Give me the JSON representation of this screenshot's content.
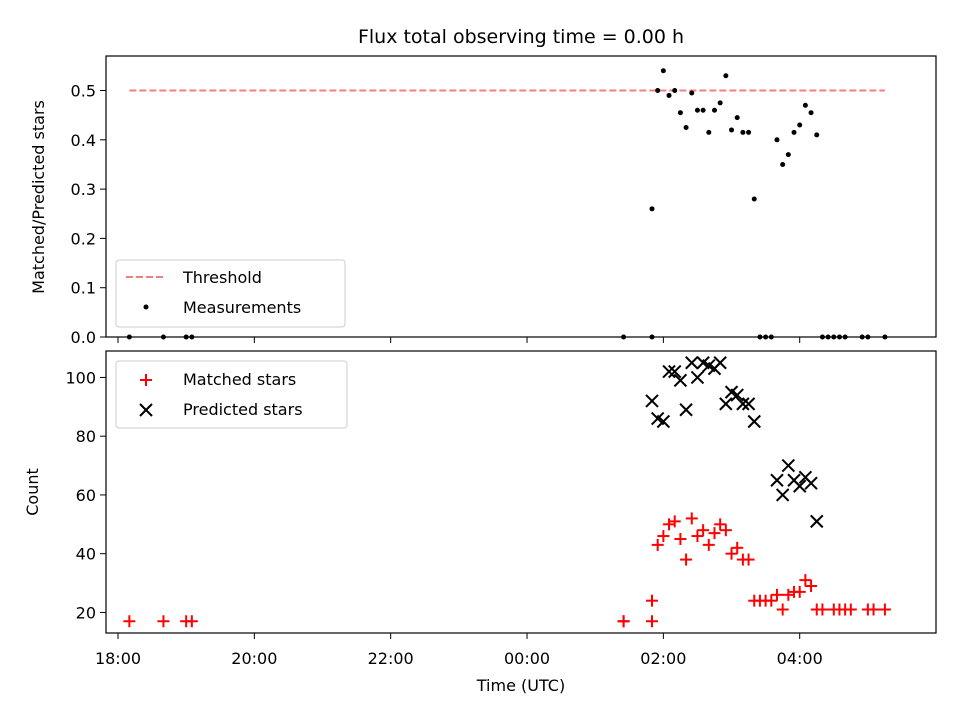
{
  "title": "Flux total observing time = 0.00 h",
  "colors": {
    "threshold": "#f08080",
    "measurements": "#000000",
    "matched": "#ff0000",
    "predicted": "#000000"
  },
  "chart_data": [
    {
      "type": "scatter",
      "panel": "top",
      "ylabel": "Matched/Predicted stars",
      "ylim": [
        0,
        0.57
      ],
      "yticks": [
        0.0,
        0.1,
        0.2,
        0.3,
        0.4,
        0.5
      ],
      "ytick_labels": [
        "0.0",
        "0.1",
        "0.2",
        "0.3",
        "0.4",
        "0.5"
      ],
      "legend_position": "lower-left",
      "legend": [
        "Threshold",
        "Measurements"
      ],
      "series": [
        {
          "name": "Threshold",
          "style": "dashed-line",
          "points": [
            [
              "18:10",
              0.5
            ],
            [
              "05:15",
              0.5
            ]
          ]
        },
        {
          "name": "Measurements",
          "style": "dot",
          "points": [
            [
              "18:10",
              0.0
            ],
            [
              "18:40",
              0.0
            ],
            [
              "19:00",
              0.0
            ],
            [
              "19:05",
              0.0
            ],
            [
              "01:25",
              0.0
            ],
            [
              "01:50",
              0.0
            ],
            [
              "01:50",
              0.26
            ],
            [
              "01:55",
              0.5
            ],
            [
              "02:00",
              0.54
            ],
            [
              "02:05",
              0.49
            ],
            [
              "02:10",
              0.5
            ],
            [
              "02:15",
              0.455
            ],
            [
              "02:20",
              0.425
            ],
            [
              "02:25",
              0.495
            ],
            [
              "02:30",
              0.46
            ],
            [
              "02:35",
              0.46
            ],
            [
              "02:40",
              0.415
            ],
            [
              "02:45",
              0.46
            ],
            [
              "02:50",
              0.475
            ],
            [
              "02:55",
              0.53
            ],
            [
              "03:00",
              0.42
            ],
            [
              "03:05",
              0.445
            ],
            [
              "03:10",
              0.415
            ],
            [
              "03:15",
              0.415
            ],
            [
              "03:20",
              0.28
            ],
            [
              "03:25",
              0.0
            ],
            [
              "03:30",
              0.0
            ],
            [
              "03:35",
              0.0
            ],
            [
              "03:40",
              0.4
            ],
            [
              "03:45",
              0.35
            ],
            [
              "03:50",
              0.37
            ],
            [
              "03:55",
              0.415
            ],
            [
              "04:00",
              0.43
            ],
            [
              "04:05",
              0.47
            ],
            [
              "04:10",
              0.455
            ],
            [
              "04:15",
              0.41
            ],
            [
              "04:20",
              0.0
            ],
            [
              "04:25",
              0.0
            ],
            [
              "04:30",
              0.0
            ],
            [
              "04:35",
              0.0
            ],
            [
              "04:40",
              0.0
            ],
            [
              "04:55",
              0.0
            ],
            [
              "05:00",
              0.0
            ],
            [
              "05:15",
              0.0
            ]
          ]
        }
      ]
    },
    {
      "type": "scatter",
      "panel": "bottom",
      "xlabel": "Time (UTC)",
      "ylabel": "Count",
      "ylim": [
        13,
        109
      ],
      "yticks": [
        20,
        40,
        60,
        80,
        100
      ],
      "ytick_labels": [
        "20",
        "40",
        "60",
        "80",
        "100"
      ],
      "xticks": [
        "18:00",
        "20:00",
        "22:00",
        "00:00",
        "02:00",
        "04:00"
      ],
      "legend_position": "upper-left",
      "legend": [
        "Matched stars",
        "Predicted stars"
      ],
      "series": [
        {
          "name": "Matched stars",
          "style": "plus",
          "points": [
            [
              "18:10",
              17
            ],
            [
              "18:40",
              17
            ],
            [
              "19:00",
              17
            ],
            [
              "19:05",
              17
            ],
            [
              "01:25",
              17
            ],
            [
              "01:25",
              17
            ],
            [
              "01:50",
              17
            ],
            [
              "01:50",
              24
            ],
            [
              "01:55",
              43
            ],
            [
              "02:00",
              46
            ],
            [
              "02:05",
              50
            ],
            [
              "02:10",
              51
            ],
            [
              "02:15",
              45
            ],
            [
              "02:20",
              38
            ],
            [
              "02:25",
              52
            ],
            [
              "02:30",
              46
            ],
            [
              "02:35",
              48
            ],
            [
              "02:40",
              43
            ],
            [
              "02:45",
              47
            ],
            [
              "02:50",
              50
            ],
            [
              "02:55",
              48
            ],
            [
              "03:00",
              40
            ],
            [
              "03:05",
              42
            ],
            [
              "03:10",
              38
            ],
            [
              "03:15",
              38
            ],
            [
              "03:20",
              24
            ],
            [
              "03:25",
              24
            ],
            [
              "03:30",
              24
            ],
            [
              "03:35",
              24
            ],
            [
              "03:40",
              26
            ],
            [
              "03:45",
              21
            ],
            [
              "03:50",
              26
            ],
            [
              "03:55",
              27
            ],
            [
              "04:00",
              27
            ],
            [
              "04:05",
              31
            ],
            [
              "04:10",
              29
            ],
            [
              "04:15",
              21
            ],
            [
              "04:20",
              21
            ],
            [
              "04:30",
              21
            ],
            [
              "04:35",
              21
            ],
            [
              "04:40",
              21
            ],
            [
              "04:45",
              21
            ],
            [
              "05:00",
              21
            ],
            [
              "05:05",
              21
            ],
            [
              "05:15",
              21
            ]
          ]
        },
        {
          "name": "Predicted stars",
          "style": "x",
          "points": [
            [
              "01:50",
              92
            ],
            [
              "01:55",
              86
            ],
            [
              "02:00",
              85
            ],
            [
              "02:05",
              102
            ],
            [
              "02:10",
              102
            ],
            [
              "02:15",
              99
            ],
            [
              "02:20",
              89
            ],
            [
              "02:25",
              105
            ],
            [
              "02:30",
              100
            ],
            [
              "02:35",
              105
            ],
            [
              "02:40",
              104
            ],
            [
              "02:45",
              103
            ],
            [
              "02:50",
              105
            ],
            [
              "02:55",
              91
            ],
            [
              "03:00",
              95
            ],
            [
              "03:05",
              94
            ],
            [
              "03:10",
              91
            ],
            [
              "03:15",
              91
            ],
            [
              "03:20",
              85
            ],
            [
              "03:40",
              65
            ],
            [
              "03:45",
              60
            ],
            [
              "03:50",
              70
            ],
            [
              "03:55",
              65
            ],
            [
              "04:00",
              63
            ],
            [
              "04:05",
              66
            ],
            [
              "04:10",
              64
            ],
            [
              "04:15",
              51
            ]
          ]
        }
      ]
    }
  ]
}
